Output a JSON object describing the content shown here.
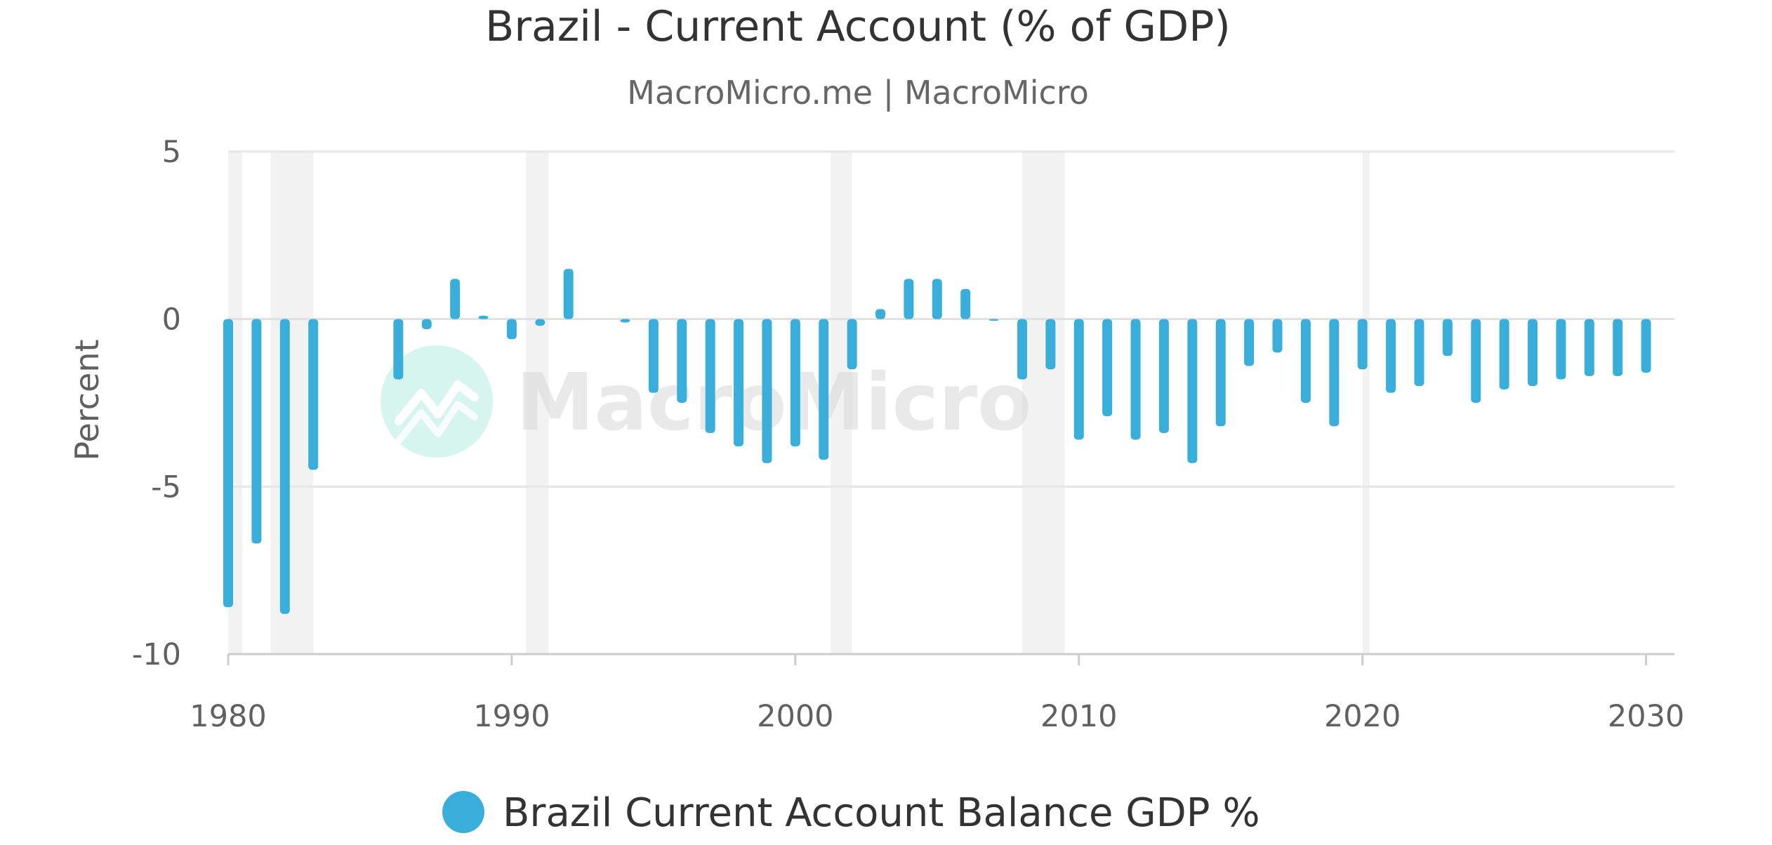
{
  "chart_data": {
    "type": "bar",
    "title": "Brazil - Current Account (% of GDP)",
    "subtitle": "MacroMicro.me | MacroMicro",
    "watermark": "MacroMicro",
    "ylabel": "Percent",
    "xlabel": "",
    "xlim": [
      1980,
      2031
    ],
    "ylim": [
      -10,
      5
    ],
    "yticks": [
      5,
      0,
      -5,
      -10
    ],
    "xticks": [
      1980,
      1990,
      2000,
      2010,
      2020,
      2030
    ],
    "grid": true,
    "legend_position": "bottom",
    "colors": {
      "bar": "#3aaedb",
      "recession": "#f2f2f2",
      "grid": "#e6e6e6",
      "zero_line": "#e0e0e0",
      "watermark_circle": "#d6f5ee",
      "watermark_text": "#d8d8d8"
    },
    "recession_periods": [
      [
        1980.0,
        1980.5
      ],
      [
        1981.5,
        1983.0
      ],
      [
        1990.5,
        1991.3
      ],
      [
        2001.25,
        2002.0
      ],
      [
        2008.0,
        2009.5
      ],
      [
        2020.0,
        2020.25
      ]
    ],
    "series": [
      {
        "name": "Brazil Current Account Balance GDP %",
        "x": [
          1980,
          1981,
          1982,
          1983,
          1986,
          1987,
          1988,
          1989,
          1990,
          1991,
          1992,
          1994,
          1995,
          1996,
          1997,
          1998,
          1999,
          2000,
          2001,
          2002,
          2003,
          2004,
          2005,
          2006,
          2007,
          2008,
          2009,
          2010,
          2011,
          2012,
          2013,
          2014,
          2015,
          2016,
          2017,
          2018,
          2019,
          2020,
          2021,
          2022,
          2023,
          2024,
          2025,
          2026,
          2027,
          2028,
          2029,
          2030
        ],
        "values": [
          -8.6,
          -6.7,
          -8.8,
          -4.5,
          -1.8,
          -0.3,
          1.2,
          0.1,
          -0.6,
          -0.2,
          1.5,
          -0.1,
          -2.2,
          -2.5,
          -3.4,
          -3.8,
          -4.3,
          -3.8,
          -4.2,
          -1.5,
          0.3,
          1.2,
          1.2,
          0.9,
          -0.05,
          -1.8,
          -1.5,
          -3.6,
          -2.9,
          -3.6,
          -3.4,
          -4.3,
          -3.2,
          -1.4,
          -1.0,
          -2.5,
          -3.2,
          -1.5,
          -2.2,
          -2.0,
          -1.1,
          -2.5,
          -2.1,
          -2.0,
          -1.8,
          -1.7,
          -1.7,
          -1.6
        ]
      }
    ]
  }
}
